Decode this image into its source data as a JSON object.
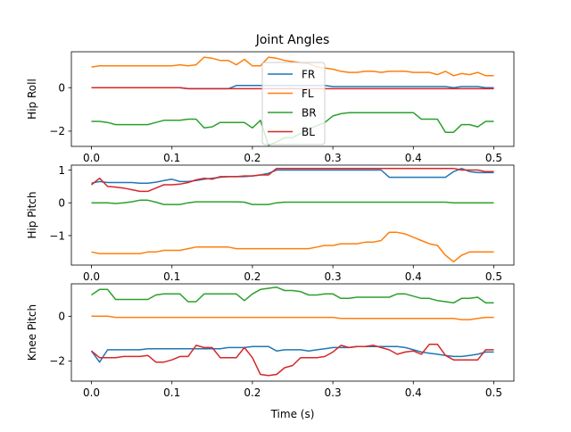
{
  "chart_data": {
    "type": "line",
    "title": "Joint Angles",
    "xlabel": "Time (s)",
    "xlim": [
      -0.025,
      0.525
    ],
    "xticks": [
      0.0,
      0.1,
      0.2,
      0.3,
      0.4,
      0.5
    ],
    "xtick_labels": [
      "0.0",
      "0.1",
      "0.2",
      "0.3",
      "0.4",
      "0.5"
    ],
    "grid": false,
    "legend_placement": "top-right of first panel",
    "x": [
      0.0,
      0.01,
      0.02,
      0.03,
      0.04,
      0.05,
      0.06,
      0.07,
      0.08,
      0.09,
      0.1,
      0.11,
      0.12,
      0.13,
      0.14,
      0.15,
      0.16,
      0.17,
      0.18,
      0.19,
      0.2,
      0.21,
      0.22,
      0.23,
      0.24,
      0.25,
      0.26,
      0.27,
      0.28,
      0.29,
      0.3,
      0.31,
      0.32,
      0.33,
      0.34,
      0.35,
      0.36,
      0.37,
      0.38,
      0.39,
      0.4,
      0.41,
      0.42,
      0.43,
      0.44,
      0.45,
      0.46,
      0.47,
      0.48,
      0.49,
      0.5
    ],
    "legend": [
      {
        "name": "FR",
        "color": "#1f77b4"
      },
      {
        "name": "FL",
        "color": "#ff7f0e"
      },
      {
        "name": "BR",
        "color": "#2ca02c"
      },
      {
        "name": "BL",
        "color": "#d62728"
      }
    ],
    "panels": [
      {
        "ylabel": "Hip Roll",
        "ylim": [
          -2.7,
          1.65
        ],
        "yticks": [
          -2,
          0
        ],
        "ytick_labels": [
          "−2",
          "0"
        ],
        "series": [
          {
            "name": "FR",
            "color": "#1f77b4",
            "values": [
              0.0,
              0.0,
              0.0,
              0.0,
              0.0,
              0.0,
              0.0,
              0.0,
              0.0,
              0.0,
              0.0,
              0.0,
              -0.05,
              -0.05,
              -0.05,
              -0.05,
              -0.05,
              -0.05,
              0.1,
              0.1,
              0.1,
              0.1,
              0.1,
              0.1,
              0.1,
              0.1,
              0.1,
              0.1,
              0.1,
              0.1,
              0.05,
              0.05,
              0.05,
              0.05,
              0.05,
              0.05,
              0.05,
              0.05,
              0.05,
              0.05,
              0.05,
              0.05,
              0.05,
              0.05,
              0.05,
              0.0,
              0.05,
              0.05,
              0.05,
              0.0,
              0.0
            ]
          },
          {
            "name": "FL",
            "color": "#ff7f0e",
            "values": [
              0.95,
              1.0,
              1.0,
              1.0,
              1.0,
              1.0,
              1.0,
              1.0,
              1.0,
              1.0,
              1.0,
              1.05,
              1.0,
              1.05,
              1.4,
              1.35,
              1.25,
              1.25,
              1.05,
              1.3,
              1.0,
              1.0,
              1.4,
              1.35,
              1.25,
              1.2,
              1.15,
              1.1,
              0.95,
              0.9,
              0.85,
              0.75,
              0.7,
              0.7,
              0.75,
              0.75,
              0.7,
              0.75,
              0.75,
              0.75,
              0.7,
              0.7,
              0.7,
              0.6,
              0.75,
              0.55,
              0.65,
              0.6,
              0.7,
              0.55,
              0.55
            ]
          },
          {
            "name": "BR",
            "color": "#2ca02c",
            "values": [
              -1.55,
              -1.55,
              -1.6,
              -1.7,
              -1.7,
              -1.7,
              -1.7,
              -1.7,
              -1.6,
              -1.5,
              -1.5,
              -1.5,
              -1.45,
              -1.45,
              -1.85,
              -1.8,
              -1.6,
              -1.6,
              -1.6,
              -1.6,
              -1.85,
              -1.5,
              -2.65,
              -2.5,
              -2.3,
              -2.3,
              -2.1,
              -1.9,
              -1.75,
              -1.6,
              -1.3,
              -1.2,
              -1.15,
              -1.15,
              -1.15,
              -1.15,
              -1.15,
              -1.15,
              -1.15,
              -1.15,
              -1.15,
              -1.45,
              -1.45,
              -1.45,
              -2.05,
              -2.05,
              -1.7,
              -1.7,
              -1.8,
              -1.55,
              -1.55
            ]
          },
          {
            "name": "BL",
            "color": "#d62728",
            "values": [
              0.0,
              0.0,
              0.0,
              0.0,
              0.0,
              0.0,
              0.0,
              0.0,
              0.0,
              0.0,
              0.0,
              0.0,
              -0.05,
              -0.05,
              -0.05,
              -0.05,
              -0.05,
              -0.05,
              -0.05,
              -0.05,
              -0.05,
              -0.05,
              -0.05,
              -0.05,
              -0.05,
              -0.05,
              -0.05,
              -0.05,
              -0.05,
              -0.05,
              -0.05,
              -0.05,
              -0.05,
              -0.05,
              -0.05,
              -0.05,
              -0.05,
              -0.05,
              -0.05,
              -0.05,
              -0.05,
              -0.05,
              -0.05,
              -0.05,
              -0.05,
              -0.05,
              -0.05,
              -0.05,
              -0.05,
              -0.05,
              -0.05
            ]
          }
        ]
      },
      {
        "ylabel": "Hip Pitch",
        "ylim": [
          -1.9,
          1.15
        ],
        "yticks": [
          -1,
          0,
          1
        ],
        "ytick_labels": [
          "−1",
          "0",
          "1"
        ],
        "series": [
          {
            "name": "FR",
            "color": "#1f77b4",
            "values": [
              0.6,
              0.65,
              0.62,
              0.62,
              0.62,
              0.62,
              0.6,
              0.6,
              0.63,
              0.68,
              0.72,
              0.65,
              0.65,
              0.68,
              0.72,
              0.75,
              0.78,
              0.8,
              0.8,
              0.8,
              0.82,
              0.85,
              0.9,
              1.0,
              1.0,
              1.0,
              1.0,
              1.0,
              1.0,
              1.0,
              1.0,
              1.0,
              1.0,
              1.0,
              1.0,
              1.0,
              1.0,
              0.78,
              0.78,
              0.78,
              0.78,
              0.78,
              0.78,
              0.78,
              0.78,
              0.95,
              1.05,
              0.95,
              0.92,
              0.92,
              0.92
            ]
          },
          {
            "name": "FL",
            "color": "#ff7f0e",
            "values": [
              -1.5,
              -1.55,
              -1.55,
              -1.55,
              -1.55,
              -1.55,
              -1.55,
              -1.5,
              -1.5,
              -1.45,
              -1.45,
              -1.45,
              -1.4,
              -1.35,
              -1.35,
              -1.35,
              -1.35,
              -1.35,
              -1.4,
              -1.4,
              -1.4,
              -1.4,
              -1.4,
              -1.4,
              -1.4,
              -1.4,
              -1.4,
              -1.4,
              -1.35,
              -1.3,
              -1.3,
              -1.25,
              -1.25,
              -1.25,
              -1.2,
              -1.2,
              -1.15,
              -0.9,
              -0.9,
              -0.95,
              -1.05,
              -1.15,
              -1.25,
              -1.3,
              -1.6,
              -1.8,
              -1.6,
              -1.5,
              -1.5,
              -1.5,
              -1.5
            ]
          },
          {
            "name": "BR",
            "color": "#2ca02c",
            "values": [
              0.0,
              0.0,
              0.0,
              -0.02,
              0.0,
              0.03,
              0.08,
              0.08,
              0.02,
              -0.05,
              -0.05,
              -0.05,
              0.0,
              0.03,
              0.03,
              0.03,
              0.03,
              0.03,
              0.03,
              0.02,
              -0.05,
              -0.05,
              -0.05,
              0.0,
              0.02,
              0.02,
              0.02,
              0.02,
              0.02,
              0.02,
              0.02,
              0.02,
              0.02,
              0.02,
              0.02,
              0.02,
              0.02,
              0.02,
              0.02,
              0.02,
              0.02,
              0.02,
              0.02,
              0.02,
              0.02,
              0.0,
              0.0,
              0.0,
              0.0,
              0.0,
              0.0
            ]
          },
          {
            "name": "BL",
            "color": "#d62728",
            "values": [
              0.55,
              0.75,
              0.5,
              0.48,
              0.45,
              0.4,
              0.35,
              0.35,
              0.45,
              0.55,
              0.55,
              0.57,
              0.62,
              0.7,
              0.75,
              0.72,
              0.8,
              0.8,
              0.8,
              0.82,
              0.82,
              0.85,
              0.85,
              1.05,
              1.05,
              1.05,
              1.05,
              1.05,
              1.05,
              1.05,
              1.05,
              1.05,
              1.05,
              1.05,
              1.05,
              1.05,
              1.05,
              1.05,
              1.05,
              1.05,
              1.05,
              1.05,
              1.05,
              1.05,
              1.05,
              1.05,
              1.0,
              1.0,
              1.0,
              0.95,
              0.95
            ]
          }
        ]
      },
      {
        "ylabel": "Knee Pitch",
        "ylim": [
          -2.9,
          1.45
        ],
        "yticks": [
          -2,
          0
        ],
        "ytick_labels": [
          "−2",
          "0"
        ],
        "series": [
          {
            "name": "FR",
            "color": "#1f77b4",
            "values": [
              -1.55,
              -2.05,
              -1.5,
              -1.5,
              -1.5,
              -1.5,
              -1.5,
              -1.45,
              -1.45,
              -1.45,
              -1.45,
              -1.45,
              -1.45,
              -1.45,
              -1.45,
              -1.45,
              -1.45,
              -1.4,
              -1.4,
              -1.4,
              -1.35,
              -1.35,
              -1.35,
              -1.55,
              -1.5,
              -1.5,
              -1.5,
              -1.55,
              -1.5,
              -1.45,
              -1.4,
              -1.4,
              -1.4,
              -1.35,
              -1.35,
              -1.35,
              -1.35,
              -1.35,
              -1.35,
              -1.4,
              -1.5,
              -1.6,
              -1.65,
              -1.7,
              -1.75,
              -1.8,
              -1.8,
              -1.75,
              -1.7,
              -1.6,
              -1.6
            ]
          },
          {
            "name": "FL",
            "color": "#ff7f0e",
            "values": [
              0.0,
              0.0,
              0.0,
              -0.05,
              -0.05,
              -0.05,
              -0.05,
              -0.05,
              -0.05,
              -0.05,
              -0.05,
              -0.05,
              -0.05,
              -0.05,
              -0.05,
              -0.05,
              -0.05,
              -0.05,
              -0.05,
              -0.05,
              -0.05,
              -0.05,
              -0.05,
              -0.05,
              -0.05,
              -0.05,
              -0.05,
              -0.05,
              -0.05,
              -0.05,
              -0.05,
              -0.1,
              -0.1,
              -0.1,
              -0.1,
              -0.1,
              -0.1,
              -0.1,
              -0.1,
              -0.1,
              -0.1,
              -0.1,
              -0.1,
              -0.1,
              -0.1,
              -0.1,
              -0.15,
              -0.15,
              -0.1,
              -0.05,
              -0.05
            ]
          },
          {
            "name": "BR",
            "color": "#2ca02c",
            "values": [
              0.95,
              1.2,
              1.2,
              0.75,
              0.75,
              0.75,
              0.75,
              0.75,
              0.95,
              1.0,
              1.0,
              1.0,
              0.65,
              0.65,
              1.0,
              1.0,
              1.0,
              1.0,
              1.0,
              0.7,
              1.0,
              1.2,
              1.25,
              1.3,
              1.15,
              1.15,
              1.1,
              0.95,
              0.95,
              1.0,
              1.0,
              0.8,
              0.8,
              0.85,
              0.85,
              0.85,
              0.85,
              0.85,
              1.0,
              1.0,
              0.9,
              0.8,
              0.8,
              0.7,
              0.65,
              0.6,
              0.8,
              0.8,
              0.85,
              0.6,
              0.6
            ]
          },
          {
            "name": "BL",
            "color": "#d62728",
            "values": [
              -1.55,
              -1.85,
              -1.85,
              -1.85,
              -1.8,
              -1.8,
              -1.8,
              -1.75,
              -2.05,
              -2.05,
              -1.95,
              -1.8,
              -1.8,
              -1.3,
              -1.4,
              -1.4,
              -1.85,
              -1.85,
              -1.85,
              -1.4,
              -1.85,
              -2.6,
              -2.65,
              -2.6,
              -2.3,
              -2.2,
              -1.85,
              -1.85,
              -1.85,
              -1.8,
              -1.6,
              -1.3,
              -1.4,
              -1.35,
              -1.35,
              -1.3,
              -1.4,
              -1.5,
              -1.7,
              -1.6,
              -1.55,
              -1.7,
              -1.25,
              -1.25,
              -1.75,
              -1.95,
              -1.95,
              -1.95,
              -1.95,
              -1.5,
              -1.5
            ]
          }
        ]
      }
    ]
  }
}
